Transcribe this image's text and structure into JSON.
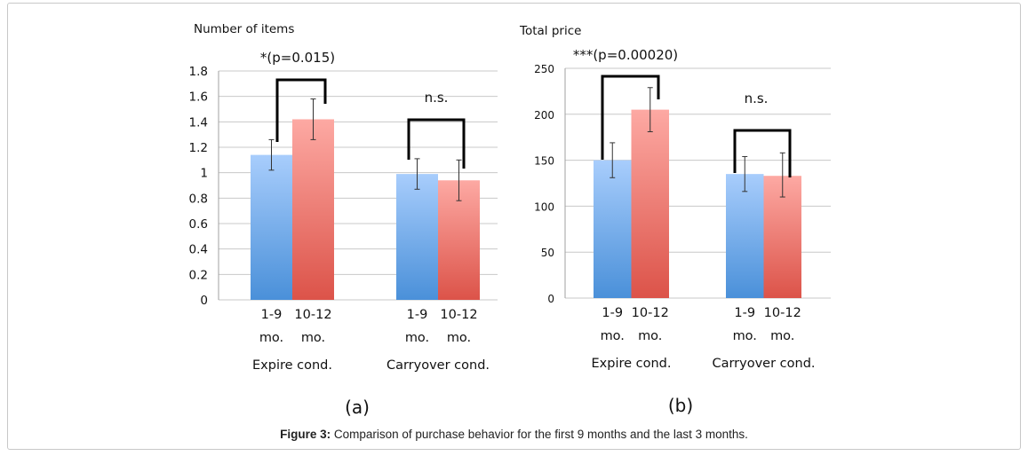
{
  "colors": {
    "blue_top": "#a8cdfc",
    "blue_bottom": "#4a90d9",
    "red_top": "#fda9a3",
    "red_bottom": "#dc5349",
    "grid": "#c8c8c8",
    "text": "#111111"
  },
  "chart_data": [
    {
      "type": "bar",
      "panel_label": "(a)",
      "ylabel": "Number of items",
      "ylim": [
        0,
        1.8
      ],
      "yticks": [
        0,
        0.2,
        0.4,
        0.6,
        0.8,
        1,
        1.2,
        1.4,
        1.6,
        1.8
      ],
      "ytick_labels": [
        "0",
        "0.2",
        "0.4",
        "0.6",
        "0.8",
        "1",
        "1.2",
        "1.4",
        "1.6",
        "1.8"
      ],
      "groups": [
        "Expire cond.",
        "Carryover cond."
      ],
      "series": [
        {
          "name": "1-9 mo.",
          "label_lines": [
            "1-9",
            "mo."
          ],
          "values": [
            1.14,
            0.99
          ],
          "err_low": [
            1.02,
            0.87
          ],
          "err_high": [
            1.26,
            1.11
          ]
        },
        {
          "name": "10-12 mo.",
          "label_lines": [
            "10-12",
            "mo."
          ],
          "values": [
            1.42,
            0.94
          ],
          "err_low": [
            1.26,
            0.78
          ],
          "err_high": [
            1.58,
            1.1
          ]
        }
      ],
      "annotations": [
        "*(p=0.015)",
        "n.s."
      ],
      "grid": true
    },
    {
      "type": "bar",
      "panel_label": "(b)",
      "ylabel": "Total price",
      "ylim": [
        0,
        250
      ],
      "yticks": [
        0,
        50,
        100,
        150,
        200,
        250
      ],
      "ytick_labels": [
        "0",
        "50",
        "100",
        "150",
        "200",
        "250"
      ],
      "groups": [
        "Expire cond.",
        "Carryover cond."
      ],
      "series": [
        {
          "name": "1-9 mo.",
          "label_lines": [
            "1-9",
            "mo."
          ],
          "values": [
            150,
            135
          ],
          "err_low": [
            131,
            116
          ],
          "err_high": [
            169,
            154
          ]
        },
        {
          "name": "10-12 mo.",
          "label_lines": [
            "10-12",
            "mo."
          ],
          "values": [
            205,
            133
          ],
          "err_low": [
            181,
            110
          ],
          "err_high": [
            229,
            158
          ]
        }
      ],
      "annotations": [
        "***(p=0.00020)",
        "n.s."
      ],
      "grid": true
    }
  ],
  "caption": {
    "bold": "Figure 3:",
    "text": " Comparison of purchase behavior for the first 9 months and the last 3 months."
  }
}
